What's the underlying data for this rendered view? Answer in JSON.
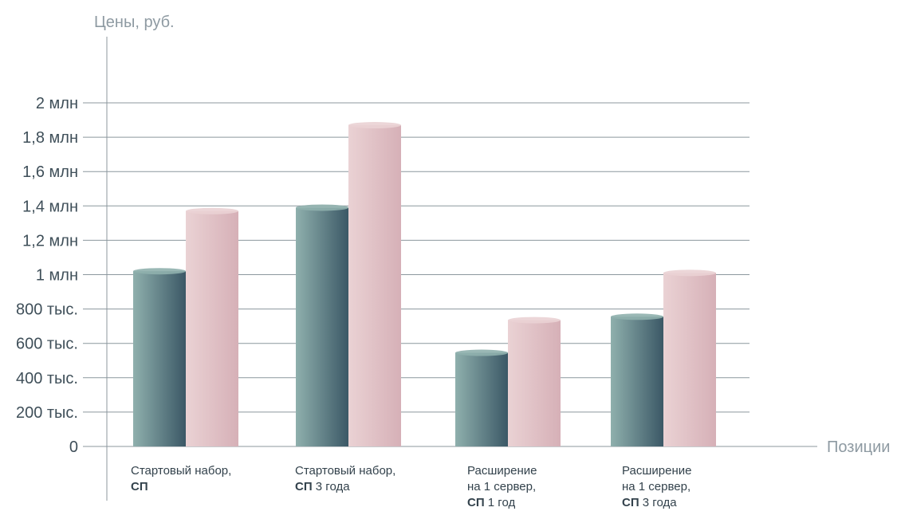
{
  "chart_data": {
    "type": "bar",
    "ylabel": "Цены, руб.",
    "xlabel": "Позиции",
    "ylim": [
      0,
      2000000
    ],
    "y_ticks": [
      {
        "value": 0,
        "label": "0"
      },
      {
        "value": 200000,
        "label": "200 тыс."
      },
      {
        "value": 400000,
        "label": "400 тыс."
      },
      {
        "value": 600000,
        "label": "600 тыс."
      },
      {
        "value": 800000,
        "label": "800 тыс."
      },
      {
        "value": 1000000,
        "label": "1 млн"
      },
      {
        "value": 1200000,
        "label": "1,2 млн"
      },
      {
        "value": 1400000,
        "label": "1,4 млн"
      },
      {
        "value": 1600000,
        "label": "1,6 млн"
      },
      {
        "value": 1800000,
        "label": "1,8 млн"
      },
      {
        "value": 2000000,
        "label": "2 млн"
      }
    ],
    "categories": [
      {
        "lines": [
          [
            {
              "t": "Стартовый набор,",
              "b": false
            }
          ],
          [
            {
              "t": "СП",
              "b": true
            }
          ]
        ]
      },
      {
        "lines": [
          [
            {
              "t": "Стартовый набор,",
              "b": false
            }
          ],
          [
            {
              "t": "СП",
              "b": true
            },
            {
              "t": " 3 года",
              "b": false
            }
          ]
        ]
      },
      {
        "lines": [
          [
            {
              "t": "Расширение",
              "b": false
            }
          ],
          [
            {
              "t": "на 1 сервер,",
              "b": false
            }
          ],
          [
            {
              "t": "СП",
              "b": true
            },
            {
              "t": " 1 год",
              "b": false
            }
          ]
        ]
      },
      {
        "lines": [
          [
            {
              "t": "Расширение",
              "b": false
            }
          ],
          [
            {
              "t": "на 1 сервер,",
              "b": false
            }
          ],
          [
            {
              "t": "СП",
              "b": true
            },
            {
              "t": " 3 года",
              "b": false
            }
          ]
        ]
      }
    ],
    "series": [
      {
        "values": [
          1020000,
          1390000,
          545000,
          755000
        ]
      },
      {
        "values": [
          1370000,
          1870000,
          735000,
          1010000
        ]
      }
    ],
    "colors": {
      "series1_light": "#8fb0ad",
      "series1_dark": "#3b5866",
      "series2_light": "#ead2d4",
      "series2_dark": "#d6b0b7",
      "grid": "#8c979e",
      "axis": "#8c979e"
    },
    "grid": true,
    "legend": "none"
  }
}
